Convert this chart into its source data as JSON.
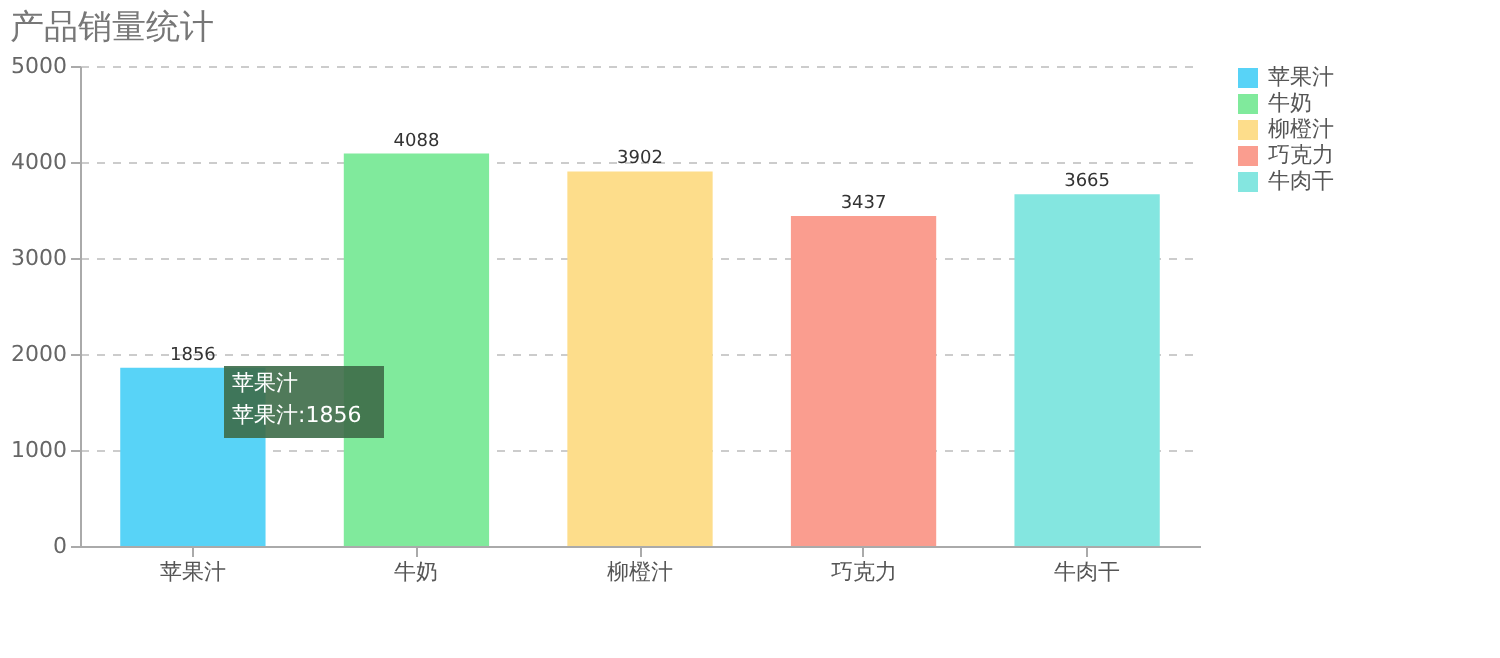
{
  "chart_data": {
    "type": "bar",
    "title": "产品销量统计",
    "stacked": true,
    "categories": [
      "苹果汁",
      "牛奶",
      "柳橙汁",
      "巧克力",
      "牛肉干"
    ],
    "series": [
      {
        "name": "苹果汁",
        "color": "#58d3f7",
        "values": [
          1856,
          null,
          null,
          null,
          null
        ]
      },
      {
        "name": "牛奶",
        "color": "#80ea9c",
        "values": [
          null,
          4088,
          null,
          null,
          null
        ]
      },
      {
        "name": "柳橙汁",
        "color": "#fddd8b",
        "values": [
          null,
          null,
          3902,
          null,
          null
        ]
      },
      {
        "name": "巧克力",
        "color": "#fa9d8f",
        "values": [
          null,
          null,
          null,
          3437,
          null
        ]
      },
      {
        "name": "牛肉干",
        "color": "#84e6e0",
        "values": [
          null,
          null,
          null,
          null,
          3665
        ]
      }
    ],
    "ylim": [
      0,
      5000
    ],
    "yticks": [
      0,
      1000,
      2000,
      3000,
      4000,
      5000
    ],
    "grid": "y",
    "legend": "right",
    "data_labels": true,
    "annotations": [
      "苹果汁",
      "苹果汁:1856"
    ]
  }
}
